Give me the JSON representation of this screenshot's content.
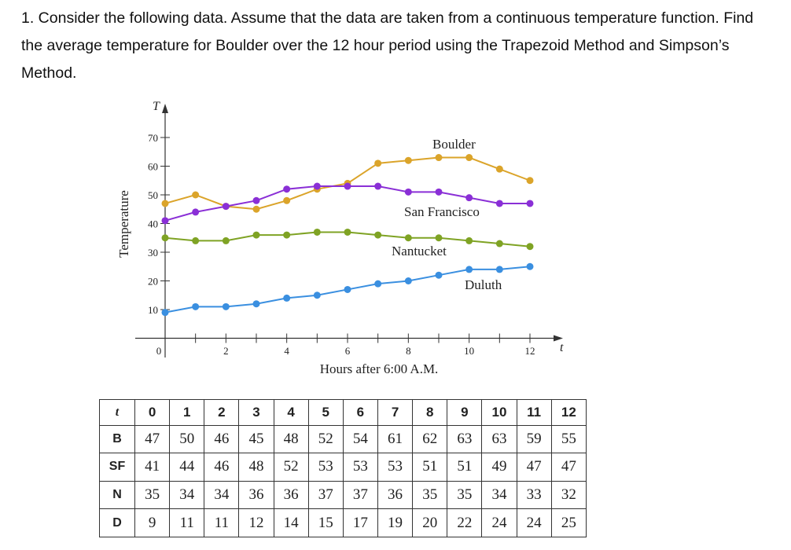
{
  "problem": {
    "text": "1. Consider the following data. Assume that the data are taken from a continuous temperature function. Find the average temperature for Boulder over the 12 hour period using the Trapezoid Method and Simpson’s Method."
  },
  "chart_data": {
    "type": "line",
    "xlabel": "Hours after 6:00 A.M.",
    "ylabel": "Temperature",
    "x_axis_symbol": "t",
    "y_axis_symbol": "T",
    "x": [
      0,
      1,
      2,
      3,
      4,
      5,
      6,
      7,
      8,
      9,
      10,
      11,
      12
    ],
    "x_tick_labels": [
      "0",
      "2",
      "4",
      "6",
      "8",
      "10",
      "12"
    ],
    "y_tick_labels": [
      "10",
      "20",
      "30",
      "40",
      "50",
      "60",
      "70"
    ],
    "xlim": [
      0,
      12
    ],
    "ylim": [
      0,
      70
    ],
    "grid": false,
    "series": [
      {
        "name": "Boulder",
        "color": "#dba42a",
        "values": [
          47,
          50,
          46,
          45,
          48,
          52,
          54,
          61,
          62,
          63,
          63,
          59,
          55
        ]
      },
      {
        "name": "San Francisco",
        "color": "#8a2fd6",
        "values": [
          41,
          44,
          46,
          48,
          52,
          53,
          53,
          53,
          51,
          51,
          49,
          47,
          47
        ]
      },
      {
        "name": "Nantucket",
        "color": "#7fa324",
        "values": [
          35,
          34,
          34,
          36,
          36,
          37,
          37,
          36,
          35,
          35,
          34,
          33,
          32
        ]
      },
      {
        "name": "Duluth",
        "color": "#3a8fe0",
        "values": [
          9,
          11,
          11,
          12,
          14,
          15,
          17,
          19,
          20,
          22,
          24,
          24,
          25
        ]
      }
    ]
  },
  "table": {
    "header": [
      "t",
      "0",
      "1",
      "2",
      "3",
      "4",
      "5",
      "6",
      "7",
      "8",
      "9",
      "10",
      "11",
      "12"
    ],
    "rows": [
      [
        "B",
        "47",
        "50",
        "46",
        "45",
        "48",
        "52",
        "54",
        "61",
        "62",
        "63",
        "63",
        "59",
        "55"
      ],
      [
        "SF",
        "41",
        "44",
        "46",
        "48",
        "52",
        "53",
        "53",
        "53",
        "51",
        "51",
        "49",
        "47",
        "47"
      ],
      [
        "N",
        "35",
        "34",
        "34",
        "36",
        "36",
        "37",
        "37",
        "36",
        "35",
        "35",
        "34",
        "33",
        "32"
      ],
      [
        "D",
        "9",
        "11",
        "11",
        "12",
        "14",
        "15",
        "17",
        "19",
        "20",
        "22",
        "24",
        "24",
        "25"
      ]
    ]
  }
}
